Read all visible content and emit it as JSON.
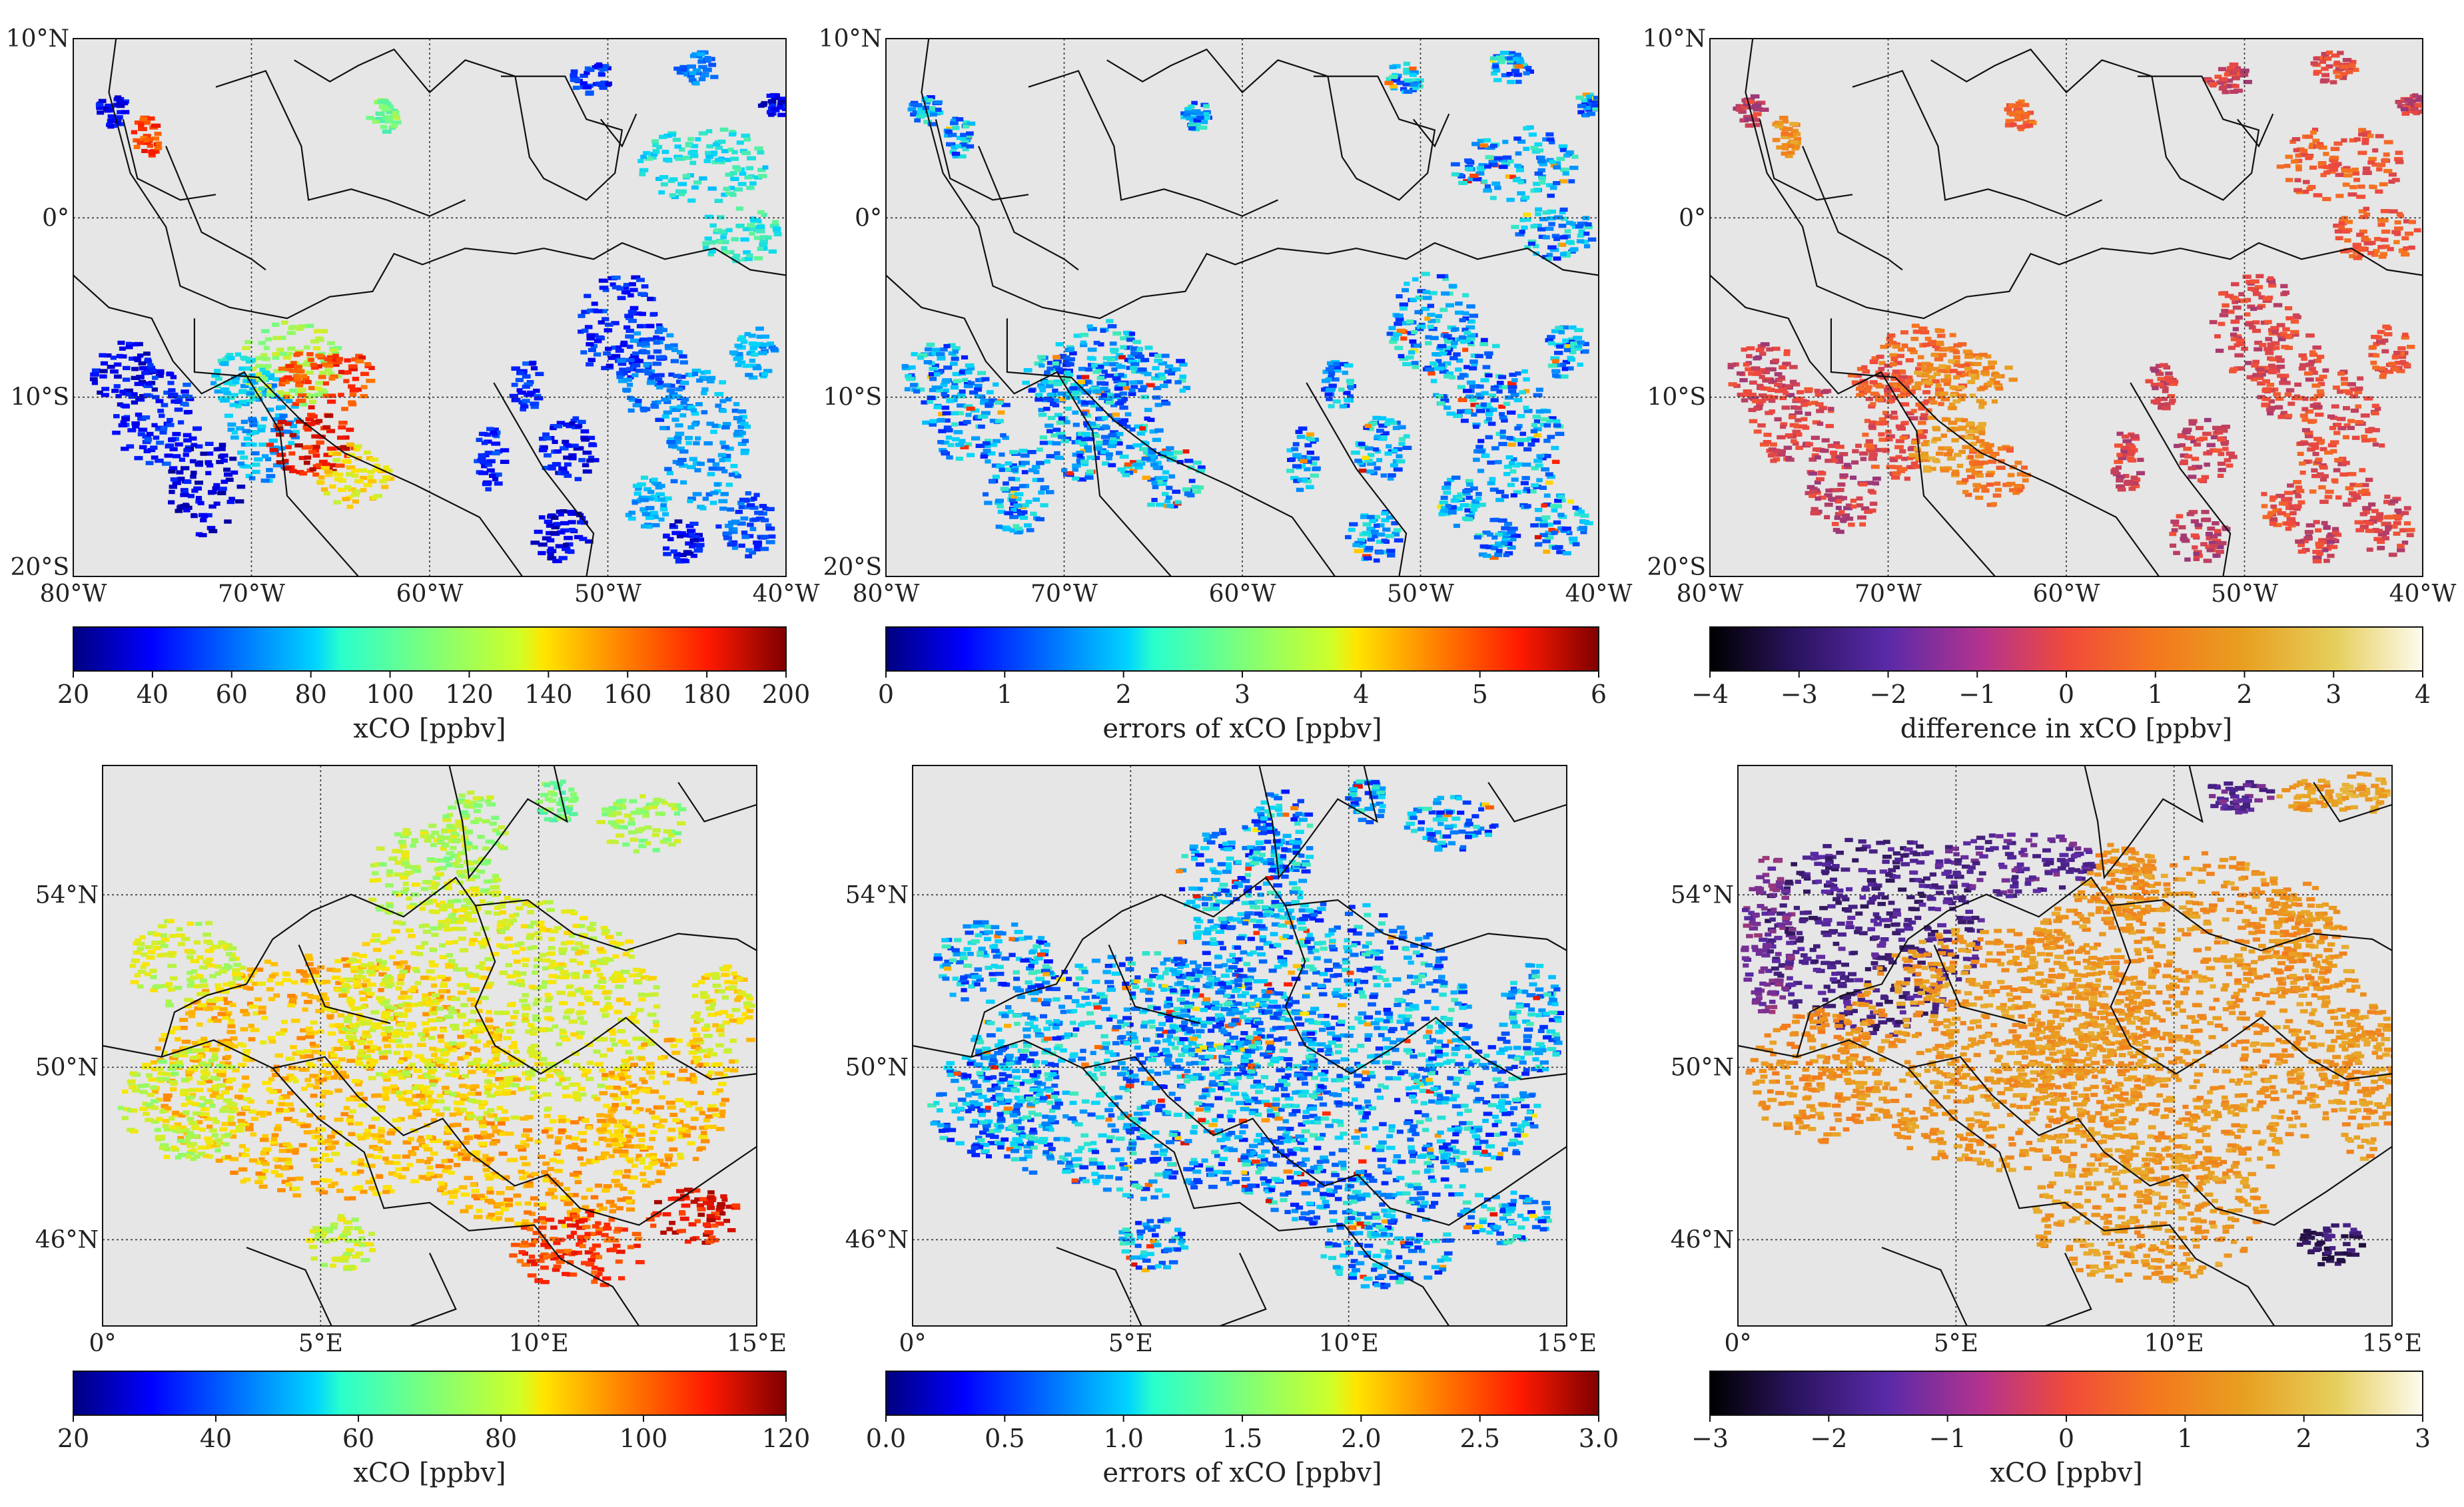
{
  "chart_data": [
    {
      "type": "map",
      "id": "sa_xco",
      "region": "south-america",
      "x_ticks": [
        {
          "value": -80,
          "label": "80°W"
        },
        {
          "value": -70,
          "label": "70°W"
        },
        {
          "value": -60,
          "label": "60°W"
        },
        {
          "value": -50,
          "label": "50°W"
        },
        {
          "value": -40,
          "label": "40°W"
        }
      ],
      "y_ticks": [
        {
          "value": 10,
          "label": "10°N"
        },
        {
          "value": 0,
          "label": "0°"
        },
        {
          "value": -10,
          "label": "10°S"
        },
        {
          "value": -20,
          "label": "20°S"
        }
      ],
      "xlim": [
        -80,
        -40
      ],
      "ylim": [
        -20,
        10
      ],
      "colorbar": {
        "cmap": "jet",
        "min": 20,
        "max": 200,
        "ticks": [
          "20",
          "40",
          "60",
          "80",
          "100",
          "120",
          "140",
          "160",
          "180",
          "200"
        ],
        "label": "xCO [ppbv]"
      }
    },
    {
      "type": "map",
      "id": "sa_err",
      "region": "south-america",
      "x_ticks": [
        {
          "value": -80,
          "label": "80°W"
        },
        {
          "value": -70,
          "label": "70°W"
        },
        {
          "value": -60,
          "label": "60°W"
        },
        {
          "value": -50,
          "label": "50°W"
        },
        {
          "value": -40,
          "label": "40°W"
        }
      ],
      "y_ticks": [
        {
          "value": 10,
          "label": "10°N"
        },
        {
          "value": 0,
          "label": "0°"
        },
        {
          "value": -10,
          "label": "10°S"
        },
        {
          "value": -20,
          "label": "20°S"
        }
      ],
      "xlim": [
        -80,
        -40
      ],
      "ylim": [
        -20,
        10
      ],
      "colorbar": {
        "cmap": "jet",
        "min": 0,
        "max": 6,
        "ticks": [
          "0",
          "1",
          "2",
          "3",
          "4",
          "5",
          "6"
        ],
        "label": "errors of xCO [ppbv]"
      }
    },
    {
      "type": "map",
      "id": "sa_diff",
      "region": "south-america",
      "x_ticks": [
        {
          "value": -80,
          "label": "80°W"
        },
        {
          "value": -70,
          "label": "70°W"
        },
        {
          "value": -60,
          "label": "60°W"
        },
        {
          "value": -50,
          "label": "50°W"
        },
        {
          "value": -40,
          "label": "40°W"
        }
      ],
      "y_ticks": [
        {
          "value": 10,
          "label": "10°N"
        },
        {
          "value": 0,
          "label": "0°"
        },
        {
          "value": -10,
          "label": "10°S"
        },
        {
          "value": -20,
          "label": "20°S"
        }
      ],
      "xlim": [
        -80,
        -40
      ],
      "ylim": [
        -20,
        10
      ],
      "colorbar": {
        "cmap": "cmr-ember",
        "min": -4,
        "max": 4,
        "ticks": [
          "−4",
          "−3",
          "−2",
          "−1",
          "0",
          "1",
          "2",
          "3",
          "4"
        ],
        "label": "difference in xCO [ppbv]"
      }
    },
    {
      "type": "map",
      "id": "eu_xco",
      "region": "europe",
      "x_ticks": [
        {
          "value": 0,
          "label": "0°"
        },
        {
          "value": 5,
          "label": "5°E"
        },
        {
          "value": 10,
          "label": "10°E"
        },
        {
          "value": 15,
          "label": "15°E"
        }
      ],
      "y_ticks": [
        {
          "value": 54,
          "label": "54°N"
        },
        {
          "value": 50,
          "label": "50°N"
        },
        {
          "value": 46,
          "label": "46°N"
        }
      ],
      "xlim": [
        0,
        15
      ],
      "ylim": [
        44,
        57
      ],
      "colorbar": {
        "cmap": "jet",
        "min": 20,
        "max": 120,
        "ticks": [
          "20",
          "40",
          "60",
          "80",
          "100",
          "120"
        ],
        "label": "xCO [ppbv]"
      }
    },
    {
      "type": "map",
      "id": "eu_err",
      "region": "europe",
      "x_ticks": [
        {
          "value": 0,
          "label": "0°"
        },
        {
          "value": 5,
          "label": "5°E"
        },
        {
          "value": 10,
          "label": "10°E"
        },
        {
          "value": 15,
          "label": "15°E"
        }
      ],
      "y_ticks": [
        {
          "value": 54,
          "label": "54°N"
        },
        {
          "value": 50,
          "label": "50°N"
        },
        {
          "value": 46,
          "label": "46°N"
        }
      ],
      "xlim": [
        0,
        15
      ],
      "ylim": [
        44,
        57
      ],
      "colorbar": {
        "cmap": "jet",
        "min": 0,
        "max": 3,
        "ticks": [
          "0.0",
          "0.5",
          "1.0",
          "1.5",
          "2.0",
          "2.5",
          "3.0"
        ],
        "label": "errors of xCO [ppbv]"
      }
    },
    {
      "type": "map",
      "id": "eu_diff",
      "region": "europe",
      "x_ticks": [
        {
          "value": 0,
          "label": "0°"
        },
        {
          "value": 5,
          "label": "5°E"
        },
        {
          "value": 10,
          "label": "10°E"
        },
        {
          "value": 15,
          "label": "15°E"
        }
      ],
      "y_ticks": [
        {
          "value": 54,
          "label": "54°N"
        },
        {
          "value": 50,
          "label": "50°N"
        },
        {
          "value": 46,
          "label": "46°N"
        }
      ],
      "xlim": [
        0,
        15
      ],
      "ylim": [
        44,
        57
      ],
      "colorbar": {
        "cmap": "cmr-ember",
        "min": -3,
        "max": 3,
        "ticks": [
          "−3",
          "−2",
          "−1",
          "0",
          "1",
          "2",
          "3"
        ],
        "label": "xCO [ppbv]"
      }
    }
  ]
}
